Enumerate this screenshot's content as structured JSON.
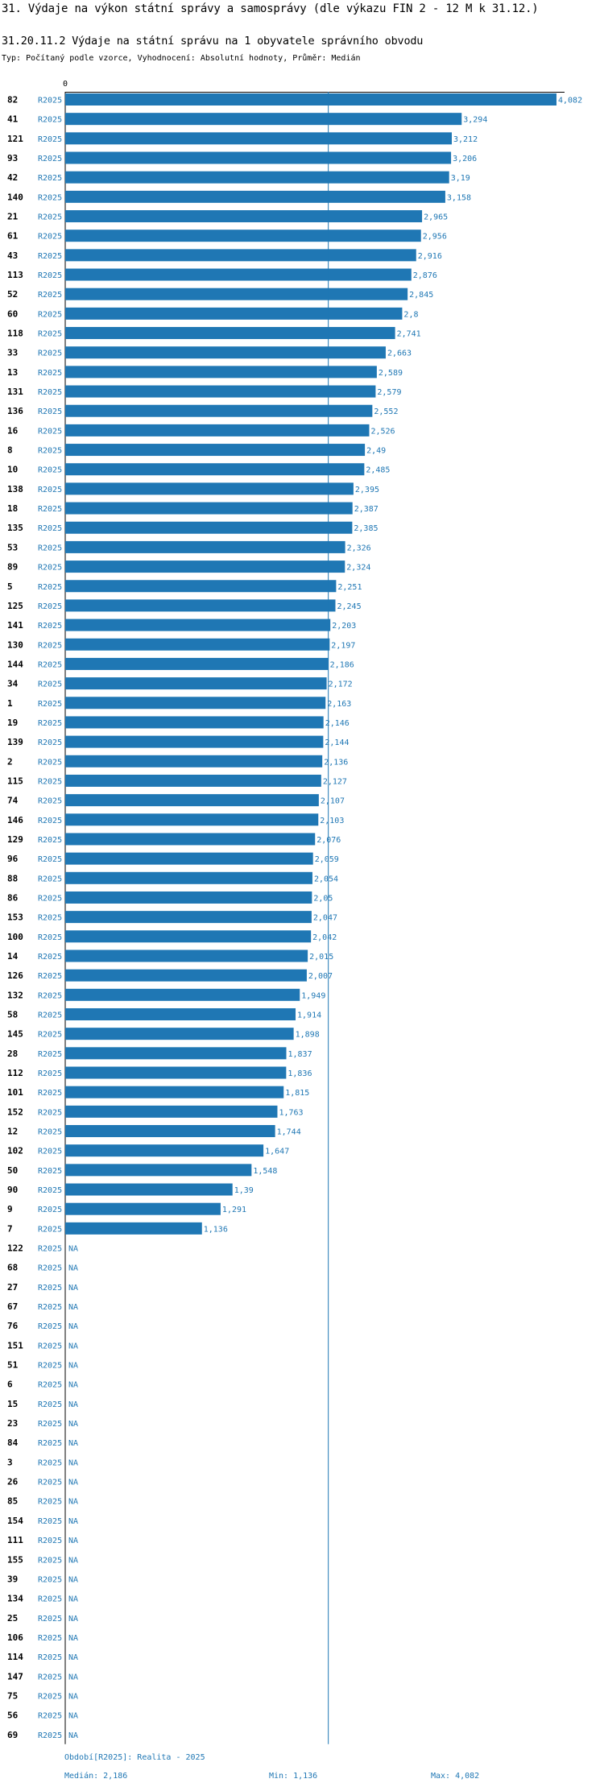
{
  "header": {
    "title": "31. Výdaje na výkon státní správy a samosprávy (dle výkazu FIN 2 - 12 M k 31.12.)",
    "subtitle": "31.20.11.2 Výdaje na státní správu na 1 obyvatele správního obvodu",
    "type_line": "Typ: Počítaný podle vzorce, Vyhodnocení: Absolutní hodnoty, Průměr: Medián"
  },
  "footer": {
    "period": "Období[R2025]: Realita - 2025",
    "median": "Medián: 2,186",
    "min": "Min: 1,136",
    "max": "Max: 4,082"
  },
  "colors": {
    "bar": "#1f77b4",
    "text": "#000000",
    "axis": "#000000"
  },
  "chart_data": {
    "type": "bar",
    "orientation": "horizontal",
    "series_label": "R2025",
    "x_axis_zero_label": "0",
    "median": 2.186,
    "xlim": [
      0,
      4.082
    ],
    "categories": [
      "82",
      "41",
      "121",
      "93",
      "42",
      "140",
      "21",
      "61",
      "43",
      "113",
      "52",
      "60",
      "118",
      "33",
      "13",
      "131",
      "136",
      "16",
      "8",
      "10",
      "138",
      "18",
      "135",
      "53",
      "89",
      "5",
      "125",
      "141",
      "130",
      "144",
      "34",
      "1",
      "19",
      "139",
      "2",
      "115",
      "74",
      "146",
      "129",
      "96",
      "88",
      "86",
      "153",
      "100",
      "14",
      "126",
      "132",
      "58",
      "145",
      "28",
      "112",
      "101",
      "152",
      "12",
      "102",
      "50",
      "90",
      "9",
      "7",
      "122",
      "68",
      "27",
      "67",
      "76",
      "151",
      "51",
      "6",
      "15",
      "23",
      "84",
      "3",
      "26",
      "85",
      "154",
      "111",
      "155",
      "39",
      "134",
      "25",
      "106",
      "114",
      "147",
      "75",
      "56",
      "69"
    ],
    "values": [
      4.082,
      3.294,
      3.212,
      3.206,
      3.19,
      3.158,
      2.965,
      2.956,
      2.916,
      2.876,
      2.845,
      2.8,
      2.741,
      2.663,
      2.589,
      2.579,
      2.552,
      2.526,
      2.49,
      2.485,
      2.395,
      2.387,
      2.385,
      2.326,
      2.324,
      2.251,
      2.245,
      2.203,
      2.197,
      2.186,
      2.172,
      2.163,
      2.146,
      2.144,
      2.136,
      2.127,
      2.107,
      2.103,
      2.076,
      2.059,
      2.054,
      2.05,
      2.047,
      2.042,
      2.015,
      2.007,
      1.949,
      1.914,
      1.898,
      1.837,
      1.836,
      1.815,
      1.763,
      1.744,
      1.647,
      1.548,
      1.39,
      1.291,
      1.136,
      null,
      null,
      null,
      null,
      null,
      null,
      null,
      null,
      null,
      null,
      null,
      null,
      null,
      null,
      null,
      null,
      null,
      null,
      null,
      null,
      null,
      null,
      null,
      null,
      null,
      null
    ],
    "value_labels": [
      "4,082",
      "3,294",
      "3,212",
      "3,206",
      "3,19",
      "3,158",
      "2,965",
      "2,956",
      "2,916",
      "2,876",
      "2,845",
      "2,8",
      "2,741",
      "2,663",
      "2,589",
      "2,579",
      "2,552",
      "2,526",
      "2,49",
      "2,485",
      "2,395",
      "2,387",
      "2,385",
      "2,326",
      "2,324",
      "2,251",
      "2,245",
      "2,203",
      "2,197",
      "2,186",
      "2,172",
      "2,163",
      "2,146",
      "2,144",
      "2,136",
      "2,127",
      "2,107",
      "2,103",
      "2,076",
      "2,059",
      "2,054",
      "2,05",
      "2,047",
      "2,042",
      "2,015",
      "2,007",
      "1,949",
      "1,914",
      "1,898",
      "1,837",
      "1,836",
      "1,815",
      "1,763",
      "1,744",
      "1,647",
      "1,548",
      "1,39",
      "1,291",
      "1,136",
      "NA",
      "NA",
      "NA",
      "NA",
      "NA",
      "NA",
      "NA",
      "NA",
      "NA",
      "NA",
      "NA",
      "NA",
      "NA",
      "NA",
      "NA",
      "NA",
      "NA",
      "NA",
      "NA",
      "NA",
      "NA",
      "NA",
      "NA",
      "NA",
      "NA",
      "NA"
    ]
  }
}
